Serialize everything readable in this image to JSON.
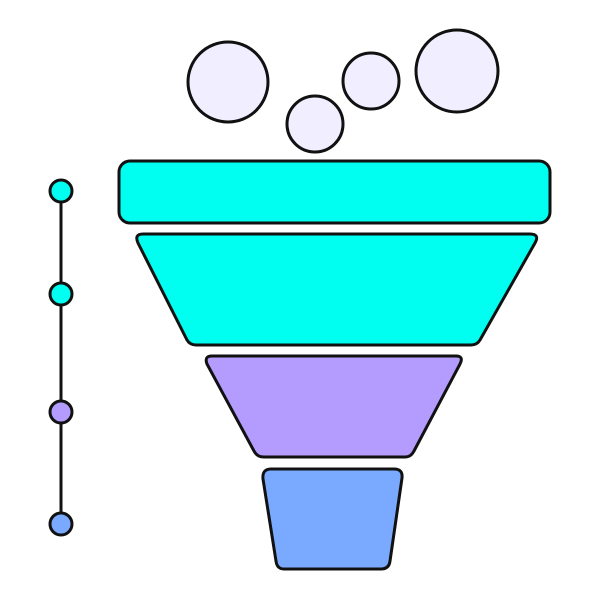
{
  "diagram": {
    "type": "funnel",
    "palette": {
      "outline": "#111111",
      "bubble_fill": "#F0EEFF",
      "cyan": "#00FFF0",
      "purple": "#B49CFF",
      "blue": "#7AAAFF"
    },
    "bubbles": [
      {
        "name": "bubble-1"
      },
      {
        "name": "bubble-2"
      },
      {
        "name": "bubble-3"
      },
      {
        "name": "bubble-4"
      }
    ],
    "stages": [
      {
        "name": "funnel-stage-1",
        "color": "cyan"
      },
      {
        "name": "funnel-stage-2",
        "color": "cyan"
      },
      {
        "name": "funnel-stage-3",
        "color": "purple"
      },
      {
        "name": "funnel-stage-4",
        "color": "blue"
      }
    ],
    "timeline_markers": [
      {
        "name": "timeline-marker-1",
        "color": "cyan"
      },
      {
        "name": "timeline-marker-2",
        "color": "cyan"
      },
      {
        "name": "timeline-marker-3",
        "color": "purple"
      },
      {
        "name": "timeline-marker-4",
        "color": "blue"
      }
    ]
  }
}
